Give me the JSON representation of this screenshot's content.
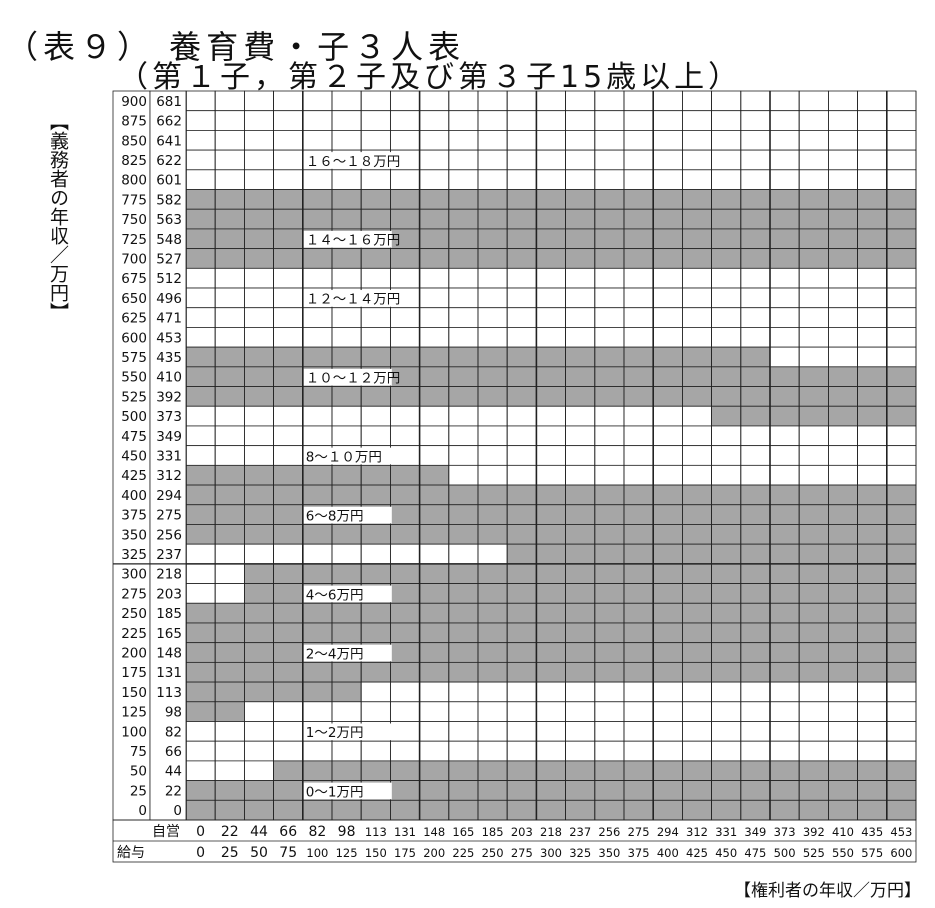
{
  "chart_data": {
    "type": "heatmap",
    "title": "（表９） 養育費・子３人表",
    "subtitle": "（第１子，第２子及び第３子15歳以上）",
    "ylabel": "【義務者の年収／万円】",
    "xlabel": "【権利者の年収／万円】",
    "row_label_kyuyo": "給与",
    "row_label_jiei": "自営",
    "kyuyo_x": [
      "0",
      "25",
      "50",
      "75",
      "100",
      "125",
      "150",
      "175",
      "200",
      "225",
      "250",
      "275",
      "300",
      "325",
      "350",
      "375",
      "400",
      "425",
      "450",
      "475",
      "500",
      "525",
      "550",
      "575",
      "600"
    ],
    "jiei_x": [
      "0",
      "22",
      "44",
      "66",
      "82",
      "98",
      "113",
      "131",
      "148",
      "165",
      "185",
      "203",
      "218",
      "237",
      "256",
      "275",
      "294",
      "312",
      "331",
      "349",
      "373",
      "392",
      "410",
      "435",
      "453"
    ],
    "kyuyo_y": [
      "900",
      "875",
      "850",
      "825",
      "800",
      "775",
      "750",
      "725",
      "700",
      "675",
      "650",
      "625",
      "600",
      "575",
      "550",
      "525",
      "500",
      "475",
      "450",
      "425",
      "400",
      "375",
      "350",
      "325",
      "300",
      "275",
      "250",
      "225",
      "200",
      "175",
      "150",
      "125",
      "100",
      "75",
      "50",
      "25",
      "0"
    ],
    "jiei_y": [
      "681",
      "662",
      "641",
      "622",
      "601",
      "582",
      "563",
      "548",
      "527",
      "512",
      "496",
      "471",
      "453",
      "435",
      "410",
      "392",
      "373",
      "349",
      "331",
      "312",
      "294",
      "275",
      "256",
      "237",
      "218",
      "203",
      "185",
      "165",
      "148",
      "131",
      "113",
      "98",
      "82",
      "66",
      "44",
      "22",
      "0"
    ],
    "band_labels": [
      {
        "row": 3,
        "text": "１６～１８万円"
      },
      {
        "row": 7,
        "text": "１４～１６万円"
      },
      {
        "row": 10,
        "text": "１２～１４万円"
      },
      {
        "row": 14,
        "text": "１０～１２万円"
      },
      {
        "row": 18,
        "text": "8～１０万円"
      },
      {
        "row": 21,
        "text": "6～8万円"
      },
      {
        "row": 25,
        "text": "4～6万円"
      },
      {
        "row": 28,
        "text": "2～4万円"
      },
      {
        "row": 32,
        "text": "1～2万円"
      },
      {
        "row": 35,
        "text": "0～1万円"
      }
    ],
    "band_boundaries": [
      [
        36,
        36,
        36,
        36,
        36,
        36,
        36,
        36,
        36,
        36,
        36,
        36,
        36,
        36,
        36,
        36,
        36,
        36,
        36,
        36,
        36,
        36,
        36,
        36,
        36
      ],
      [
        34,
        34,
        34,
        33,
        33,
        33,
        33,
        33,
        33,
        33,
        33,
        33,
        33,
        33,
        33,
        33,
        33,
        33,
        33,
        33,
        33,
        33,
        33,
        33,
        33
      ],
      [
        31,
        31,
        30,
        30,
        30,
        30,
        29,
        29,
        29,
        29,
        29,
        29,
        29,
        29,
        29,
        29,
        29,
        29,
        29,
        29,
        29,
        29,
        29,
        29,
        29
      ],
      [
        25,
        25,
        23,
        23,
        23,
        23,
        23,
        23,
        23,
        23,
        23,
        23,
        23,
        23,
        23,
        23,
        23,
        23,
        23,
        23,
        23,
        23,
        23,
        23,
        23
      ],
      [
        22,
        22,
        22,
        22,
        22,
        22,
        22,
        22,
        22,
        22,
        22,
        23,
        23,
        23,
        23,
        23,
        23,
        23,
        23,
        23,
        23,
        23,
        23,
        23,
        23
      ],
      [
        18,
        18,
        18,
        18,
        18,
        18,
        18,
        18,
        18,
        19,
        19,
        19,
        19,
        19,
        19,
        19,
        19,
        19,
        19,
        19,
        19,
        19,
        19,
        19,
        19
      ],
      [
        15,
        15,
        15,
        15,
        15,
        15,
        15,
        15,
        15,
        15,
        15,
        15,
        15,
        15,
        15,
        15,
        15,
        15,
        16,
        16,
        16,
        16,
        16,
        16,
        16
      ],
      [
        12,
        12,
        12,
        12,
        12,
        12,
        12,
        12,
        12,
        12,
        12,
        12,
        12,
        12,
        12,
        12,
        12,
        12,
        12,
        12,
        13,
        13,
        13,
        13,
        13
      ],
      [
        8,
        8,
        8,
        8,
        8,
        8,
        8,
        8,
        8,
        8,
        8,
        8,
        8,
        8,
        8,
        8,
        8,
        8,
        8,
        8,
        8,
        8,
        8,
        8,
        8
      ],
      [
        4,
        4,
        4,
        4,
        4,
        4,
        4,
        4,
        4,
        4,
        4,
        4,
        4,
        4,
        4,
        4,
        4,
        4,
        4,
        4,
        4,
        4,
        4,
        4,
        4
      ]
    ],
    "shade_color": "#a6a6a6",
    "grid_color": "#222222"
  }
}
